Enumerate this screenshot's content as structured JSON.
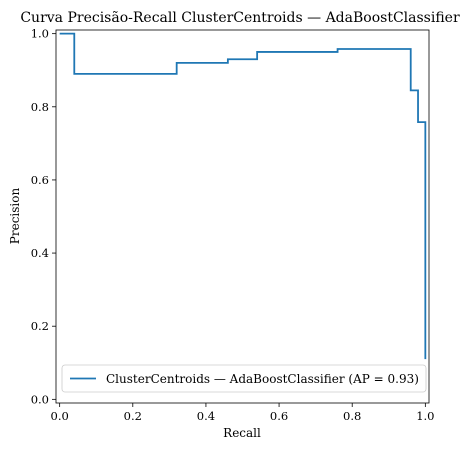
{
  "chart_data": {
    "type": "line",
    "title": "Curva Precisão-Recall ClusterCentroids — AdaBoostClassifier",
    "xlabel": "Recall",
    "ylabel": "Precision",
    "xlim": [
      -0.01,
      1.01
    ],
    "ylim": [
      -0.01,
      1.01
    ],
    "xticks": [
      0.0,
      0.2,
      0.4,
      0.6,
      0.8,
      1.0
    ],
    "xtick_labels": [
      "0.0",
      "0.2",
      "0.4",
      "0.6",
      "0.8",
      "1.0"
    ],
    "yticks": [
      0.0,
      0.2,
      0.4,
      0.6,
      0.8,
      1.0
    ],
    "ytick_labels": [
      "0.0",
      "0.2",
      "0.4",
      "0.6",
      "0.8",
      "1.0"
    ],
    "grid": false,
    "legend_position": "lower-right",
    "series": [
      {
        "name": "ClusterCentroids — AdaBoostClassifier (AP = 0.93)",
        "color": "#1f77b4",
        "step": "post",
        "x": [
          0.0,
          0.04,
          0.04,
          0.32,
          0.32,
          0.46,
          0.46,
          0.54,
          0.54,
          0.76,
          0.76,
          0.96,
          0.96,
          0.98,
          0.98,
          1.0,
          1.0
        ],
        "y": [
          1.0,
          1.0,
          0.89,
          0.89,
          0.92,
          0.92,
          0.93,
          0.93,
          0.95,
          0.95,
          0.958,
          0.958,
          0.845,
          0.845,
          0.758,
          0.758,
          0.11
        ]
      }
    ]
  }
}
